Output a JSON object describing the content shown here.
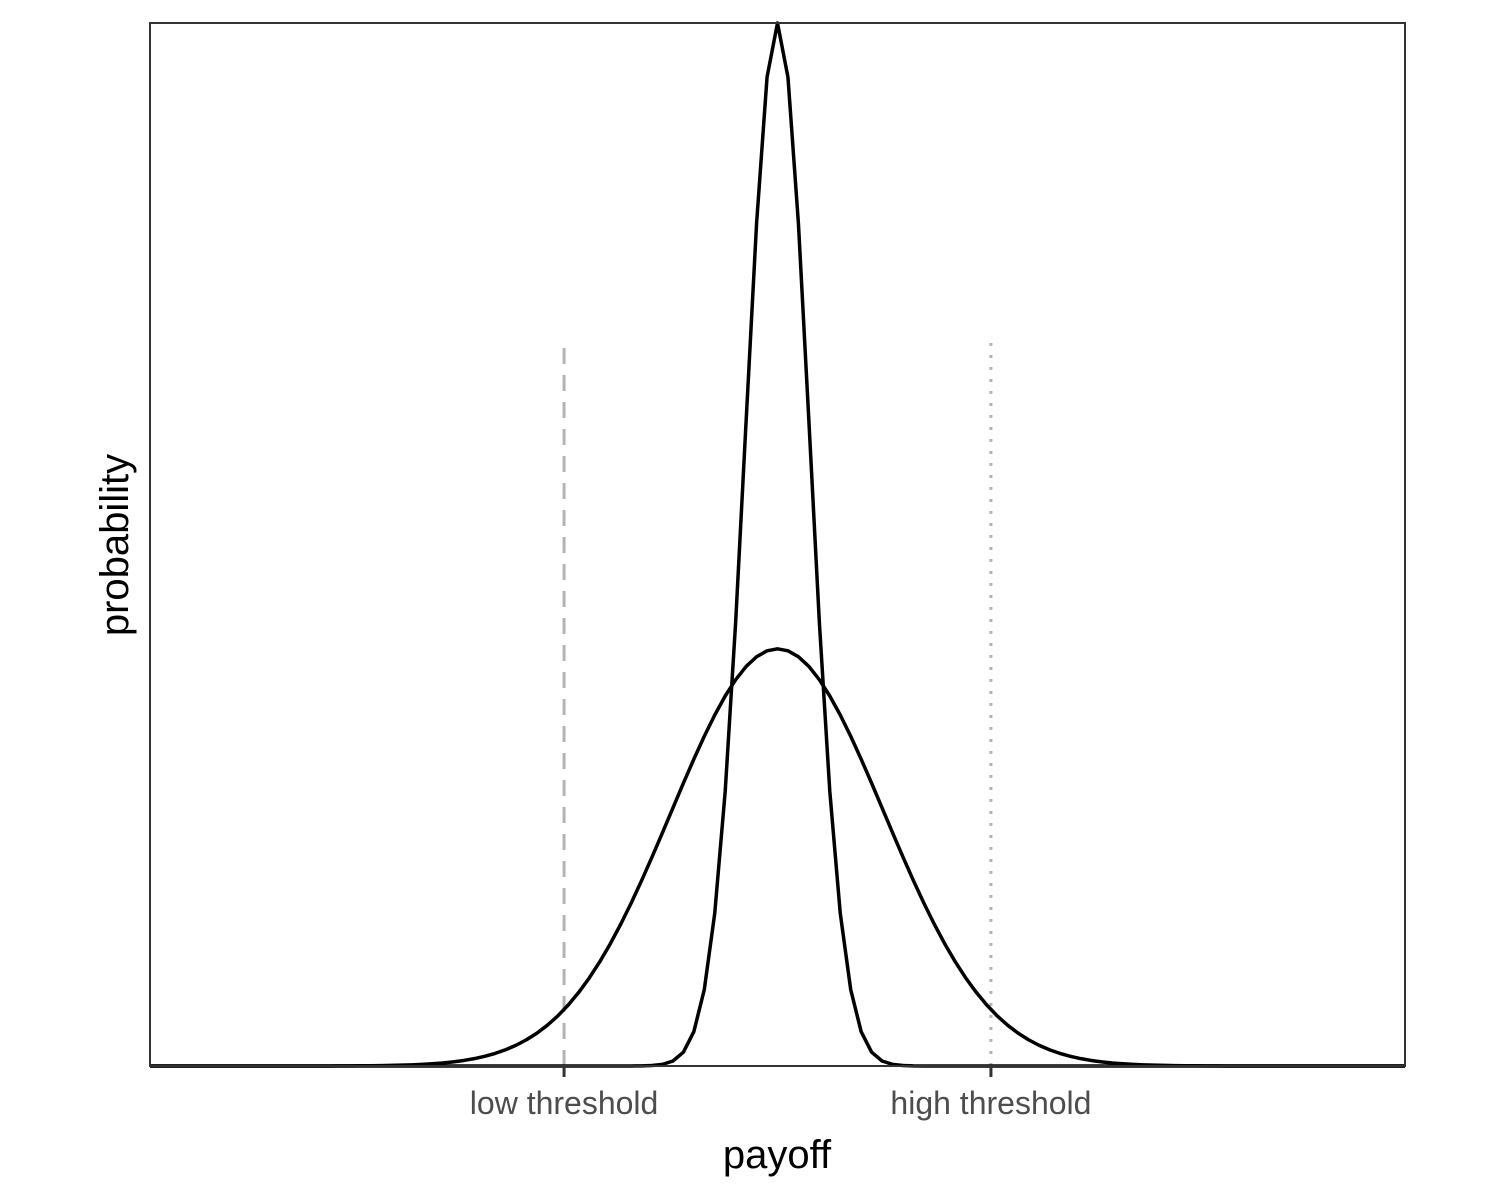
{
  "chart_data": {
    "type": "line",
    "title": "",
    "xlabel": "payoff",
    "ylabel": "probability",
    "x_ticks": [
      {
        "label": "low threshold",
        "value": -1.0
      },
      {
        "label": "high threshold",
        "value": 1.0
      }
    ],
    "xlim": [
      -2.94,
      2.94
    ],
    "ylim": [
      0,
      1.05
    ],
    "grid": false,
    "series": [
      {
        "distribution": "normal",
        "mean": 0,
        "sd": 0.5,
        "peak": 0.42,
        "points": 121
      },
      {
        "distribution": "normal",
        "mean": 0,
        "sd": 0.15,
        "peak": 1.05,
        "points": 121
      }
    ],
    "reference_lines": [
      {
        "x": -1.0,
        "top": 0.73,
        "style": "dashed",
        "color": "#b3b3b3"
      },
      {
        "x": 1.0,
        "top": 0.735,
        "style": "dotted",
        "color": "#b3b3b3"
      }
    ],
    "colors": {
      "curve": "#000000",
      "panel_border": "#333333",
      "tick": "#333333",
      "tick_label": "#4d4d4d"
    }
  }
}
